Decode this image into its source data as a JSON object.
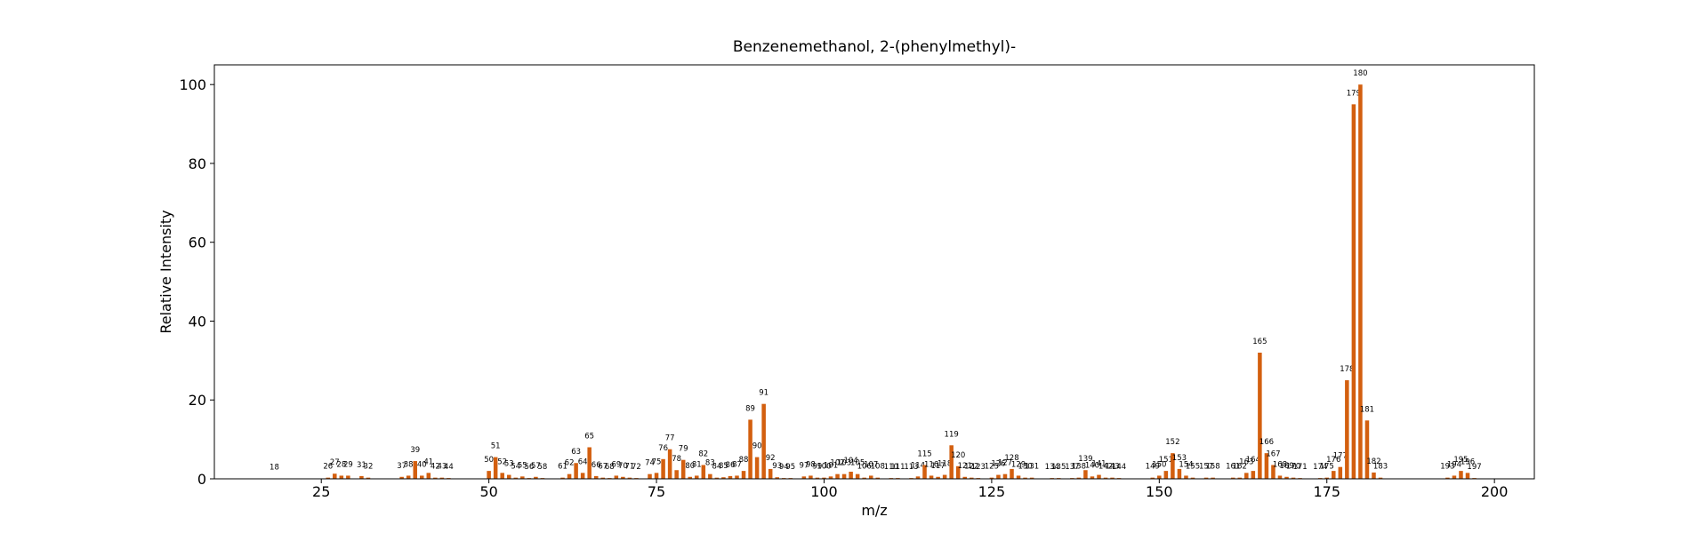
{
  "chart_data": {
    "type": "bar",
    "title": "Benzenemethanol, 2-(phenylmethyl)-",
    "x_label": "m/z",
    "y_label": "Relative Intensity",
    "color": "#d35f0f",
    "xlim": [
      9.05,
      205.95
    ],
    "ylim": [
      0,
      105
    ],
    "xticks": [
      25,
      50,
      75,
      100,
      125,
      150,
      175,
      200
    ],
    "yticks": [
      0,
      20,
      40,
      60,
      80,
      100
    ],
    "x": [
      18,
      26,
      27,
      28,
      29,
      31,
      32,
      37,
      38,
      39,
      40,
      41,
      42,
      43,
      44,
      50,
      51,
      52,
      53,
      54,
      55,
      56,
      57,
      58,
      61,
      62,
      63,
      64,
      65,
      66,
      67,
      68,
      69,
      70,
      71,
      72,
      74,
      75,
      76,
      77,
      78,
      79,
      80,
      81,
      82,
      83,
      84,
      85,
      86,
      87,
      88,
      89,
      90,
      91,
      92,
      93,
      94,
      95,
      97,
      98,
      99,
      100,
      101,
      102,
      103,
      104,
      105,
      106,
      107,
      108,
      110,
      111,
      113,
      114,
      115,
      116,
      117,
      118,
      119,
      120,
      121,
      122,
      123,
      125,
      126,
      127,
      128,
      129,
      130,
      131,
      134,
      135,
      137,
      138,
      139,
      140,
      141,
      142,
      143,
      144,
      149,
      150,
      151,
      152,
      153,
      154,
      155,
      157,
      158,
      161,
      162,
      163,
      164,
      165,
      166,
      167,
      168,
      169,
      170,
      171,
      174,
      175,
      176,
      177,
      178,
      179,
      180,
      181,
      182,
      183,
      193,
      194,
      195,
      196,
      197
    ],
    "values": [
      0.1,
      0.3,
      1.3,
      0.8,
      0.8,
      0.7,
      0.3,
      0.5,
      0.8,
      4.5,
      0.8,
      1.5,
      0.3,
      0.3,
      0.2,
      2,
      5.5,
      1.5,
      1,
      0.3,
      0.6,
      0.2,
      0.5,
      0.2,
      0.3,
      1.2,
      4,
      1.5,
      8,
      0.7,
      0.3,
      0.2,
      0.8,
      0.5,
      0.3,
      0.2,
      1.2,
      1.5,
      5,
      7.5,
      2.2,
      4.8,
      0.5,
      0.8,
      3.5,
      1.2,
      0.3,
      0.4,
      0.7,
      0.8,
      2,
      15,
      5.5,
      19,
      2.5,
      0.4,
      0.2,
      0.2,
      0.6,
      0.8,
      0.3,
      0.3,
      0.6,
      1.2,
      1.2,
      1.8,
      1.2,
      0.3,
      0.8,
      0.3,
      0.2,
      0.2,
      0.2,
      0.6,
      3.5,
      0.8,
      0.5,
      1,
      8.5,
      3.2,
      0.5,
      0.3,
      0.2,
      0.3,
      1,
      1.2,
      2.5,
      0.8,
      0.3,
      0.3,
      0.2,
      0.2,
      0.2,
      0.3,
      2.2,
      0.6,
      1,
      0.3,
      0.3,
      0.2,
      0.3,
      0.8,
      2,
      6.5,
      2.5,
      0.8,
      0.3,
      0.3,
      0.3,
      0.3,
      0.3,
      1.5,
      2,
      32,
      6.5,
      3.5,
      0.8,
      0.5,
      0.3,
      0.2,
      0.2,
      0.3,
      2,
      3,
      25,
      95,
      100,
      14.8,
      1.6,
      0.3,
      0.3,
      0.8,
      2,
      1.5,
      0.2
    ]
  }
}
